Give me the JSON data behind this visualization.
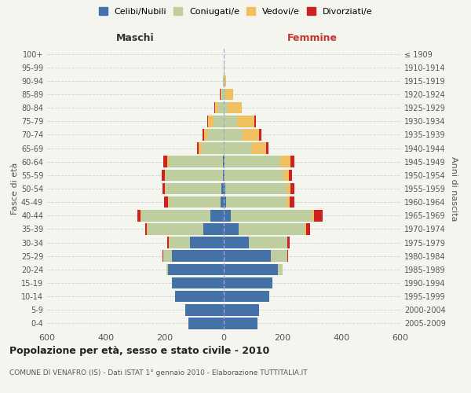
{
  "age_groups": [
    "0-4",
    "5-9",
    "10-14",
    "15-19",
    "20-24",
    "25-29",
    "30-34",
    "35-39",
    "40-44",
    "45-49",
    "50-54",
    "55-59",
    "60-64",
    "65-69",
    "70-74",
    "75-79",
    "80-84",
    "85-89",
    "90-94",
    "95-99",
    "100+"
  ],
  "birth_years": [
    "2005-2009",
    "2000-2004",
    "1995-1999",
    "1990-1994",
    "1985-1989",
    "1980-1984",
    "1975-1979",
    "1970-1974",
    "1965-1969",
    "1960-1964",
    "1955-1959",
    "1950-1954",
    "1945-1949",
    "1940-1944",
    "1935-1939",
    "1930-1934",
    "1925-1929",
    "1920-1924",
    "1915-1919",
    "1910-1914",
    "≤ 1909"
  ],
  "male": {
    "celibe": [
      120,
      130,
      165,
      175,
      190,
      175,
      115,
      70,
      45,
      12,
      8,
      2,
      2,
      1,
      0,
      0,
      0,
      0,
      0,
      0,
      0
    ],
    "coniugato": [
      0,
      0,
      0,
      0,
      5,
      30,
      70,
      190,
      235,
      175,
      190,
      195,
      185,
      75,
      55,
      35,
      18,
      7,
      3,
      1,
      0
    ],
    "vedovo": [
      0,
      0,
      0,
      0,
      0,
      1,
      1,
      2,
      2,
      2,
      2,
      3,
      5,
      10,
      12,
      18,
      12,
      5,
      1,
      0,
      0
    ],
    "divorziato": [
      0,
      0,
      0,
      0,
      1,
      3,
      5,
      5,
      12,
      14,
      8,
      10,
      14,
      5,
      5,
      3,
      2,
      1,
      0,
      0,
      0
    ]
  },
  "female": {
    "nubile": [
      115,
      120,
      155,
      165,
      185,
      160,
      85,
      50,
      25,
      8,
      5,
      2,
      2,
      0,
      0,
      0,
      0,
      0,
      0,
      0,
      0
    ],
    "coniugata": [
      0,
      0,
      0,
      0,
      15,
      55,
      130,
      225,
      275,
      205,
      210,
      200,
      190,
      95,
      65,
      45,
      12,
      4,
      2,
      1,
      0
    ],
    "vedova": [
      0,
      0,
      0,
      0,
      0,
      1,
      2,
      4,
      7,
      10,
      12,
      18,
      35,
      50,
      55,
      58,
      48,
      28,
      5,
      2,
      1
    ],
    "divorziata": [
      0,
      0,
      0,
      0,
      1,
      2,
      7,
      13,
      28,
      16,
      12,
      12,
      14,
      8,
      8,
      5,
      2,
      1,
      0,
      0,
      0
    ]
  },
  "color_celibe": "#4472a8",
  "color_coniugato": "#bfce9e",
  "color_vedovo": "#f0c060",
  "color_divorziato": "#cc2222",
  "bg_color": "#f5f5f0",
  "grid_color": "#cccccc",
  "title": "Popolazione per età, sesso e stato civile - 2010",
  "subtitle": "COMUNE DI VENAFRO (IS) - Dati ISTAT 1° gennaio 2010 - Elaborazione TUTTITALIA.IT",
  "xlabel_left": "Maschi",
  "xlabel_right": "Femmine",
  "ylabel_left": "Fasce di età",
  "ylabel_right": "Anni di nascita",
  "xlim": 600,
  "legend_labels": [
    "Celibi/Nubili",
    "Coniugati/e",
    "Vedovi/e",
    "Divorziati/e"
  ]
}
